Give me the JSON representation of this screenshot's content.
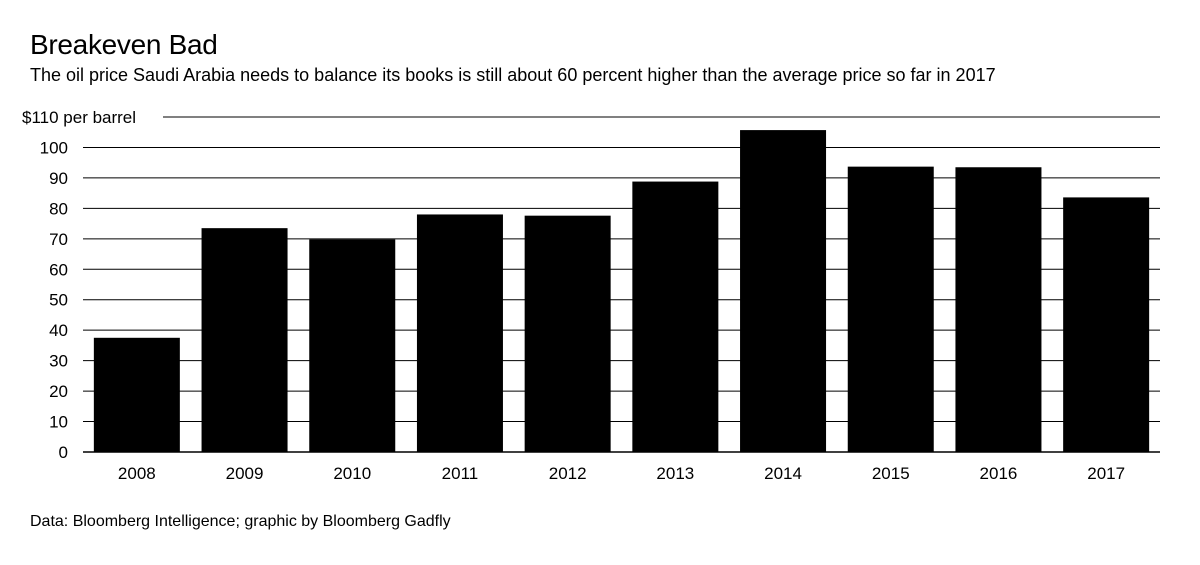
{
  "header": {
    "title": "Breakeven Bad",
    "subtitle": "The oil price Saudi Arabia needs to balance its books is still about 60 percent higher than the average price so far in 2017"
  },
  "footer": {
    "source": "Data: Bloomberg Intelligence; graphic by Bloomberg Gadfly"
  },
  "chart_data": {
    "type": "bar",
    "title": "Breakeven Bad",
    "subtitle": "The oil price Saudi Arabia needs to balance its books is still about 60 percent higher than the average price so far in 2017",
    "xlabel": "",
    "ylabel": "$ per barrel",
    "y_unit_label": "$110 per barrel",
    "ylim": [
      0,
      110
    ],
    "yticks": [
      0,
      10,
      20,
      30,
      40,
      50,
      60,
      70,
      80,
      90,
      100,
      110
    ],
    "ytick_labels": [
      "0",
      "10",
      "20",
      "30",
      "40",
      "50",
      "60",
      "70",
      "80",
      "90",
      "100",
      "$110 per barrel"
    ],
    "grid": true,
    "categories": [
      "2008",
      "2009",
      "2010",
      "2011",
      "2012",
      "2013",
      "2014",
      "2015",
      "2016",
      "2017"
    ],
    "values": [
      37.5,
      73.5,
      69.8,
      78,
      77.6,
      88.8,
      105.7,
      93.7,
      93.5,
      83.6
    ],
    "colors": {
      "bar": "#000000",
      "grid": "#000000",
      "text": "#000000",
      "background": "#ffffff"
    }
  }
}
